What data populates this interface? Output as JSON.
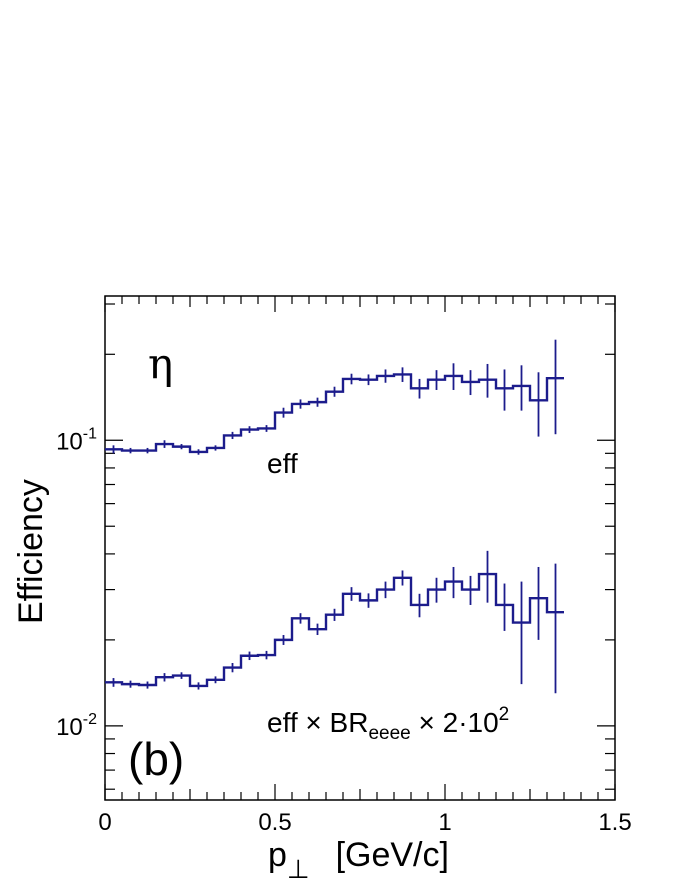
{
  "chart_data": {
    "type": "line",
    "panel_label": "(b)",
    "particle_label": "η",
    "xlabel_main": "p",
    "xlabel_sub": "⊥",
    "xlabel_unit": "[GeV/c]",
    "ylabel": "Efficiency",
    "xlim": [
      0,
      1.5
    ],
    "ylim": [
      0.0055,
      0.32
    ],
    "yscale": "log",
    "x_ticks": [
      {
        "value": 0,
        "label": "0"
      },
      {
        "value": 0.5,
        "label": "0.5"
      },
      {
        "value": 1,
        "label": "1"
      },
      {
        "value": 1.5,
        "label": "1.5"
      }
    ],
    "y_ticks": [
      {
        "value": 0.1,
        "base": "10",
        "exp": "-1"
      },
      {
        "value": 0.01,
        "base": "10",
        "exp": "-2"
      }
    ],
    "colors": {
      "series": "#1c1c8c",
      "axis": "#000000"
    },
    "series": [
      {
        "name": "eff",
        "bin_width": 0.05,
        "x": [
          0.025,
          0.075,
          0.125,
          0.175,
          0.225,
          0.275,
          0.325,
          0.375,
          0.425,
          0.475,
          0.525,
          0.575,
          0.625,
          0.675,
          0.725,
          0.775,
          0.825,
          0.875,
          0.925,
          0.975,
          1.025,
          1.075,
          1.125,
          1.175,
          1.225,
          1.275,
          1.325
        ],
        "values": [
          0.093,
          0.092,
          0.092,
          0.097,
          0.095,
          0.091,
          0.094,
          0.104,
          0.109,
          0.11,
          0.125,
          0.134,
          0.136,
          0.148,
          0.164,
          0.163,
          0.168,
          0.17,
          0.152,
          0.163,
          0.168,
          0.16,
          0.163,
          0.152,
          0.155,
          0.138,
          0.165
        ],
        "errors": [
          0.003,
          0.002,
          0.002,
          0.003,
          0.002,
          0.002,
          0.002,
          0.003,
          0.003,
          0.003,
          0.005,
          0.005,
          0.005,
          0.006,
          0.007,
          0.007,
          0.009,
          0.01,
          0.012,
          0.013,
          0.018,
          0.016,
          0.022,
          0.025,
          0.028,
          0.035,
          0.06
        ]
      },
      {
        "name": "eff × BR_eeee × 2·10²",
        "bin_width": 0.05,
        "x": [
          0.025,
          0.075,
          0.125,
          0.175,
          0.225,
          0.275,
          0.325,
          0.375,
          0.425,
          0.475,
          0.525,
          0.575,
          0.625,
          0.675,
          0.725,
          0.775,
          0.825,
          0.875,
          0.925,
          0.975,
          1.025,
          1.075,
          1.125,
          1.175,
          1.225,
          1.275,
          1.325
        ],
        "values": [
          0.0142,
          0.014,
          0.0139,
          0.0148,
          0.015,
          0.0138,
          0.0145,
          0.016,
          0.0176,
          0.0177,
          0.02,
          0.0238,
          0.0218,
          0.0245,
          0.029,
          0.0275,
          0.03,
          0.033,
          0.0265,
          0.03,
          0.032,
          0.03,
          0.034,
          0.0265,
          0.023,
          0.028,
          0.025
        ],
        "errors": [
          0.0005,
          0.0004,
          0.0004,
          0.0005,
          0.0004,
          0.0004,
          0.0004,
          0.0006,
          0.0006,
          0.0006,
          0.0008,
          0.001,
          0.001,
          0.0012,
          0.0016,
          0.0016,
          0.002,
          0.002,
          0.0025,
          0.003,
          0.004,
          0.0035,
          0.007,
          0.005,
          0.009,
          0.008,
          0.012
        ]
      }
    ],
    "annotations": {
      "eff_label": "eff",
      "product_prefix": "eff × BR",
      "product_sub": "eeee",
      "product_mid": " × 2·10",
      "product_sup": "2"
    }
  }
}
